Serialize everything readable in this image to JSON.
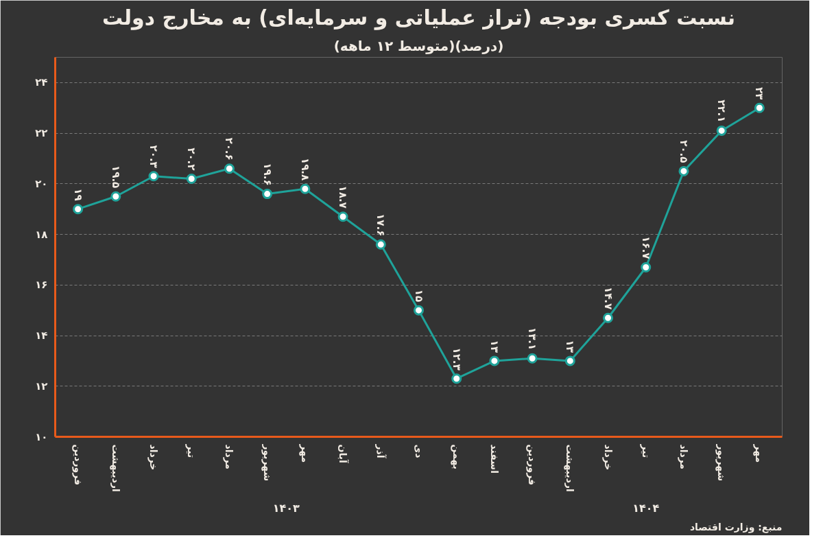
{
  "chart_data": {
    "type": "line",
    "title": "نسبت کسری بودجه (تراز عملیاتی و سرمایه‌ای) به مخارج دولت",
    "subtitle": "(متوسط ۱۲ ماهه)(درصد)",
    "categories": [
      "فروردین",
      "اردیبهشت",
      "خرداد",
      "تیر",
      "مرداد",
      "شهریور",
      "مهر",
      "آبان",
      "آذر",
      "دی",
      "بهمن",
      "اسفند",
      "فروردین",
      "اردیبهشت",
      "خرداد",
      "تیر",
      "مرداد",
      "شهریور",
      "مهر"
    ],
    "series": [
      {
        "color": "#1fa39a",
        "values": [
          19,
          19.5,
          20.3,
          20.2,
          20.6,
          19.6,
          19.8,
          18.7,
          17.6,
          15,
          12.3,
          13,
          13.1,
          13,
          14.7,
          16.7,
          20.5,
          22.1,
          23
        ],
        "value_labels": [
          "۱۹",
          "۱۹.۵",
          "۲۰.۳",
          "۲۰.۲",
          "۲۰.۶",
          "۱۹.۶",
          "۱۹.۸",
          "۱۸.۷",
          "۱۷.۶",
          "۱۵",
          "۱۲.۳",
          "۱۳",
          "۱۳.۱",
          "۱۳",
          "۱۴.۷",
          "۱۶.۷",
          "۲۰.۵",
          "۲۲.۱",
          "۲۳"
        ]
      }
    ],
    "ylim": [
      10,
      25
    ],
    "yticks": [
      {
        "value": 10,
        "label": "۱۰"
      },
      {
        "value": 12,
        "label": "۱۲"
      },
      {
        "value": 14,
        "label": "۱۴"
      },
      {
        "value": 16,
        "label": "۱۶"
      },
      {
        "value": 18,
        "label": "۱۸"
      },
      {
        "value": 20,
        "label": "۲۰"
      },
      {
        "value": 22,
        "label": "۲۲"
      },
      {
        "value": 24,
        "label": "۲۴"
      }
    ],
    "grid": "y",
    "marker": "circle",
    "line_style": "solid",
    "annotations": [
      "منبع: وزارت اقتصاد",
      "۱۴۰۳",
      "۱۴۰۴"
    ]
  }
}
